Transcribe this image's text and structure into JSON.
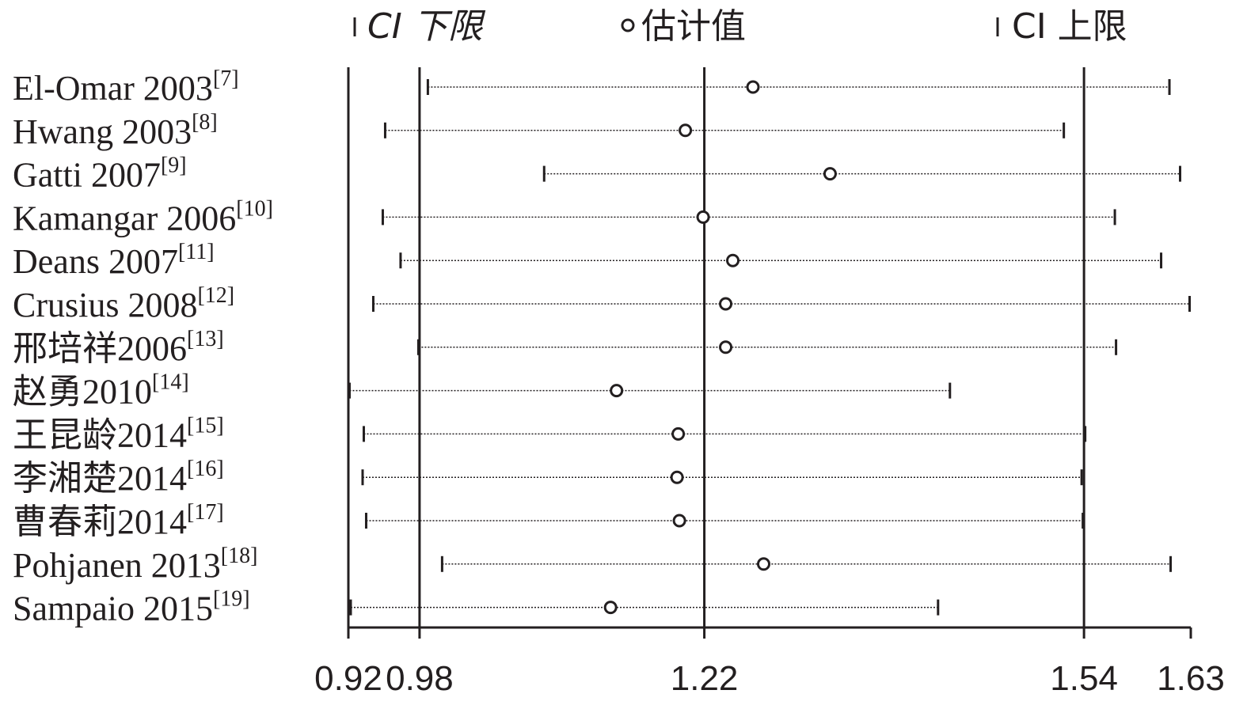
{
  "chart_data": {
    "type": "ci-plot",
    "legend": {
      "lower": "CI 下限",
      "estimate": "估计值",
      "upper": "CI 上限"
    },
    "categories": [
      "El-Omar 2003",
      "Hwang 2003",
      "Gatti 2007",
      "Kamangar 2006",
      "Deans 2007",
      "Crusius 2008",
      "邢培祥2006",
      "赵勇2010",
      "王昆龄2014",
      "李湘楚2014",
      "曹春莉2014",
      "Pohjanen 2013",
      "Sampaio 2015"
    ],
    "refs": [
      "[7]",
      "[8]",
      "[9]",
      "[10]",
      "[11]",
      "[12]",
      "[13]",
      "[14]",
      "[15]",
      "[16]",
      "[17]",
      "[18]",
      "[19]"
    ],
    "estimate": [
      1.261,
      1.204,
      1.326,
      1.219,
      1.244,
      1.238,
      1.238,
      1.146,
      1.198,
      1.197,
      1.199,
      1.27,
      1.141
    ],
    "lower": [
      0.987,
      0.951,
      1.085,
      0.949,
      0.964,
      0.941,
      0.979,
      0.921,
      0.933,
      0.932,
      0.935,
      0.999,
      0.922
    ],
    "upper": [
      1.612,
      1.523,
      1.621,
      1.566,
      1.605,
      1.629,
      1.567,
      1.427,
      1.541,
      1.538,
      1.539,
      1.613,
      1.417
    ],
    "xlim": [
      0.92,
      1.63
    ],
    "xticks": [
      0.92,
      0.98,
      1.22,
      1.54,
      1.63
    ],
    "reference_lines": [
      0.98,
      1.22,
      1.54
    ],
    "color": "#231f20"
  }
}
